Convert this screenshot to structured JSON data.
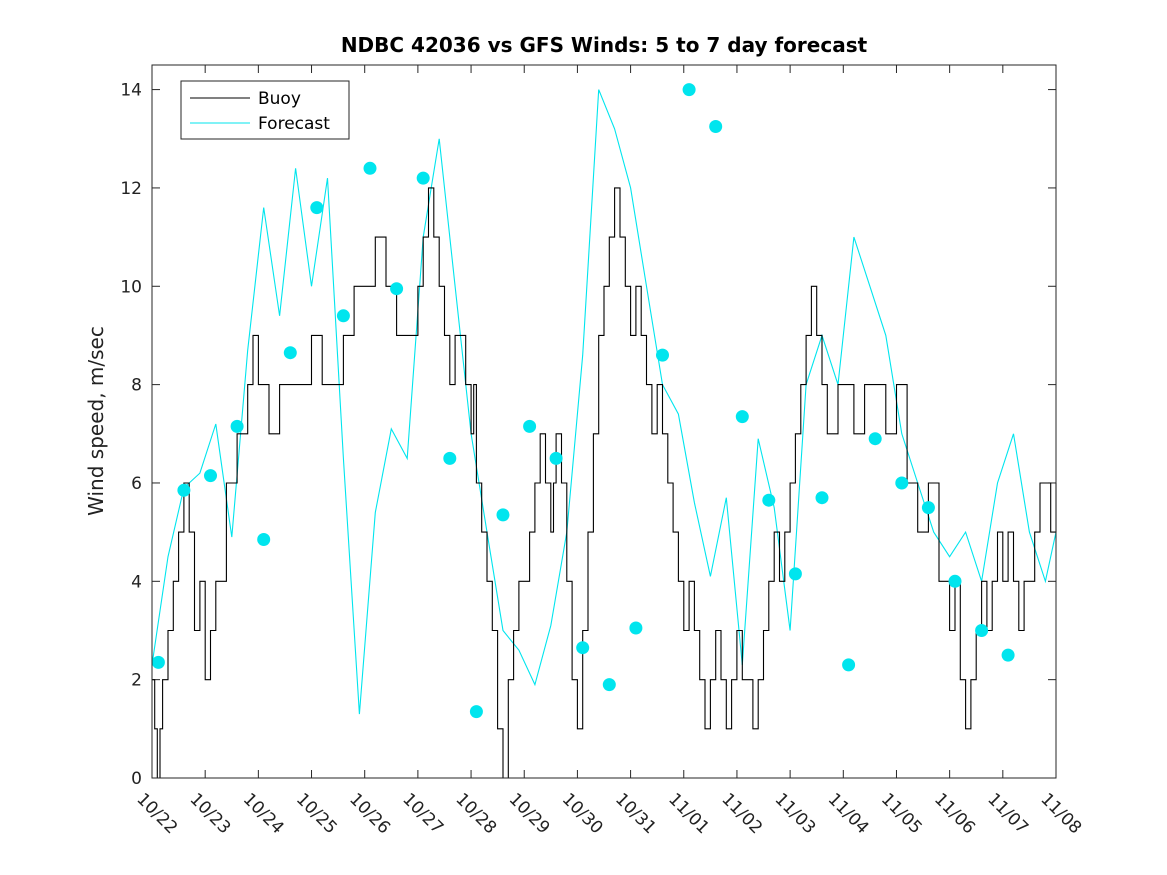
{
  "chart_data": {
    "type": "line",
    "title": "NDBC 42036 vs GFS Winds: 5 to 7 day forecast",
    "xlabel": "",
    "ylabel": "Wind speed, m/sec",
    "xlim": [
      0,
      17
    ],
    "ylim": [
      0,
      14.5
    ],
    "yticks": [
      0,
      2,
      4,
      6,
      8,
      10,
      12,
      14
    ],
    "xtick_labels": [
      "10/22",
      "10/23",
      "10/24",
      "10/25",
      "10/26",
      "10/27",
      "10/28",
      "10/29",
      "10/30",
      "10/31",
      "11/01",
      "11/02",
      "11/03",
      "11/04",
      "11/05",
      "11/06",
      "11/07",
      "11/08"
    ],
    "legend": {
      "position": "top-left",
      "entries": [
        "Buoy",
        "Forecast"
      ]
    },
    "colors": {
      "buoy": "#000000",
      "forecast": "#00e5ee"
    },
    "series": [
      {
        "name": "Buoy",
        "x": [
          0,
          0.05,
          0.1,
          0.15,
          0.2,
          0.3,
          0.4,
          0.5,
          0.6,
          0.7,
          0.8,
          0.9,
          1.0,
          1.1,
          1.2,
          1.4,
          1.6,
          1.8,
          1.9,
          2.0,
          2.2,
          2.4,
          2.6,
          2.8,
          3.0,
          3.2,
          3.4,
          3.6,
          3.8,
          4.0,
          4.2,
          4.4,
          4.6,
          4.8,
          5.0,
          5.1,
          5.2,
          5.3,
          5.4,
          5.5,
          5.6,
          5.7,
          5.8,
          5.9,
          6.0,
          6.05,
          6.1,
          6.2,
          6.3,
          6.4,
          6.5,
          6.6,
          6.7,
          6.8,
          6.9,
          7.0,
          7.1,
          7.2,
          7.3,
          7.4,
          7.5,
          7.55,
          7.6,
          7.7,
          7.8,
          7.9,
          8.0,
          8.1,
          8.2,
          8.3,
          8.4,
          8.5,
          8.6,
          8.7,
          8.8,
          8.9,
          9.0,
          9.1,
          9.2,
          9.3,
          9.4,
          9.5,
          9.6,
          9.7,
          9.8,
          9.9,
          10.0,
          10.1,
          10.2,
          10.3,
          10.4,
          10.5,
          10.6,
          10.7,
          10.8,
          10.9,
          11.0,
          11.1,
          11.2,
          11.3,
          11.4,
          11.5,
          11.6,
          11.7,
          11.8,
          11.9,
          12.0,
          12.1,
          12.2,
          12.3,
          12.4,
          12.5,
          12.6,
          12.7,
          12.8,
          12.9,
          13.0,
          13.2,
          13.4,
          13.6,
          13.8,
          14.0,
          14.2,
          14.4,
          14.6,
          14.8,
          15.0,
          15.1,
          15.2,
          15.3,
          15.4,
          15.5,
          15.6,
          15.7,
          15.8,
          15.9,
          16.0,
          16.1,
          16.2,
          16.3,
          16.4,
          16.5,
          16.6,
          16.7,
          16.8,
          16.9,
          17.0
        ],
        "values": [
          2,
          1,
          0,
          1,
          2,
          3,
          4,
          5,
          6,
          5,
          3,
          4,
          2,
          3,
          4,
          6,
          7,
          8,
          9,
          8,
          7,
          8,
          8,
          8,
          9,
          8,
          8,
          9,
          10,
          10,
          11,
          10,
          9,
          9,
          10,
          11,
          12,
          11,
          10,
          9,
          8,
          9,
          9,
          8,
          7,
          8,
          6,
          5,
          4,
          3,
          1,
          0,
          2,
          3,
          4,
          4,
          5,
          6,
          7,
          6,
          5,
          6,
          7,
          6,
          4,
          2,
          1,
          3,
          5,
          7,
          9,
          10,
          11,
          12,
          11,
          10,
          9,
          10,
          9,
          8,
          7,
          8,
          7,
          6,
          5,
          4,
          3,
          4,
          3,
          2,
          1,
          2,
          3,
          2,
          1,
          2,
          3,
          2,
          2,
          1,
          2,
          3,
          4,
          5,
          4,
          5,
          6,
          7,
          8,
          9,
          10,
          9,
          8,
          7,
          7,
          8,
          8,
          7,
          8,
          8,
          7,
          8,
          6,
          5,
          6,
          4,
          3,
          4,
          2,
          1,
          2,
          3,
          4,
          3,
          4,
          5,
          4,
          5,
          4,
          3,
          4,
          4,
          5,
          6,
          6,
          5,
          6
        ],
        "color": "#000000"
      },
      {
        "name": "Forecast",
        "x": [
          0,
          0.3,
          0.6,
          0.9,
          1.2,
          1.5,
          1.8,
          2.1,
          2.4,
          2.7,
          3.0,
          3.3,
          3.6,
          3.9,
          4.2,
          4.5,
          4.8,
          5.1,
          5.4,
          5.7,
          6.0,
          6.3,
          6.6,
          6.9,
          7.2,
          7.5,
          7.8,
          8.1,
          8.4,
          8.7,
          9.0,
          9.3,
          9.6,
          9.9,
          10.2,
          10.5,
          10.8,
          11.1,
          11.4,
          11.7,
          12.0,
          12.3,
          12.6,
          12.9,
          13.2,
          13.5,
          13.8,
          14.1,
          14.4,
          14.7,
          15.0,
          15.3,
          15.6,
          15.9,
          16.2,
          16.5,
          16.8,
          17.0
        ],
        "values": [
          2.3,
          4.5,
          5.9,
          6.2,
          7.2,
          4.9,
          8.7,
          11.6,
          9.4,
          12.4,
          10.0,
          12.2,
          6.5,
          1.3,
          5.4,
          7.1,
          6.5,
          11.0,
          13.0,
          10.0,
          7.0,
          5.0,
          3.0,
          2.6,
          1.9,
          3.1,
          5.0,
          8.6,
          14.0,
          13.2,
          12.0,
          10.0,
          8.0,
          7.4,
          5.6,
          4.1,
          5.7,
          2.3,
          6.9,
          5.5,
          3.0,
          8.0,
          9.0,
          8.0,
          11.0,
          10.0,
          9.0,
          7.0,
          6.0,
          5.0,
          4.5,
          5.0,
          4.0,
          6.0,
          7.0,
          5.0,
          4.0,
          5.0
        ],
        "color": "#00e5ee"
      }
    ],
    "markers": {
      "name": "Forecast",
      "x": [
        0.12,
        0.6,
        1.1,
        1.6,
        2.1,
        2.6,
        3.1,
        3.6,
        4.1,
        4.6,
        5.1,
        5.6,
        6.1,
        6.6,
        7.1,
        7.6,
        8.1,
        8.6,
        9.1,
        9.6,
        10.1,
        10.6,
        11.1,
        11.6,
        12.1,
        12.6,
        13.1,
        13.6,
        14.1,
        14.6,
        15.1,
        15.6,
        16.1
      ],
      "values": [
        2.35,
        5.85,
        6.15,
        7.15,
        4.85,
        8.65,
        11.6,
        9.4,
        12.4,
        9.95,
        12.2,
        6.5,
        1.35,
        5.35,
        7.15,
        6.5,
        2.65,
        1.9,
        3.05,
        8.6,
        14.0,
        13.25,
        7.35,
        5.65,
        4.15,
        5.7,
        2.3,
        6.9,
        6.0,
        5.5,
        4.0,
        3.0,
        2.5
      ]
    }
  }
}
